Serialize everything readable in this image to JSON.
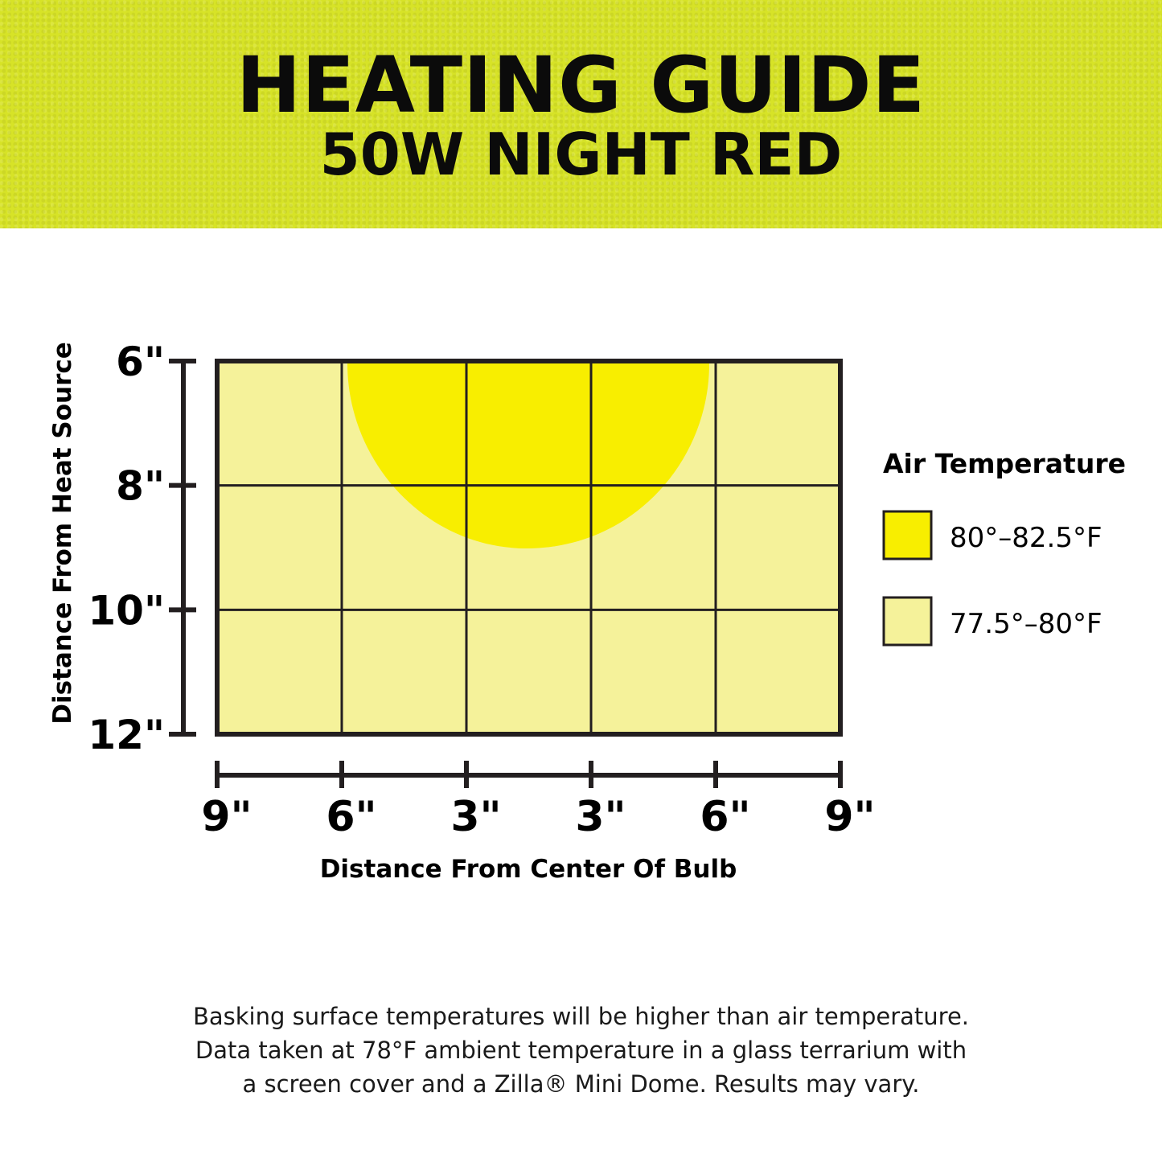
{
  "header": {
    "title": "HEATING GUIDE",
    "subtitle": "50W NIGHT RED"
  },
  "colors": {
    "banner": "#d7e327",
    "hot": "#f8ee00",
    "warm": "#f5f29a",
    "line": "#231f20"
  },
  "chart_data": {
    "type": "heatmap",
    "xlabel": "Distance From Center Of Bulb",
    "ylabel": "Distance From Heat Source",
    "x_tick_labels": [
      "9\"",
      "6\"",
      "3\"",
      "3\"",
      "6\"",
      "9\""
    ],
    "y_tick_labels": [
      "6\"",
      "8\"",
      "10\"",
      "12\""
    ],
    "grid": true,
    "zones": [
      {
        "name": "80°–82.5°F",
        "color": "#f8ee00",
        "description_depth_max_in": 9
      },
      {
        "name": "77.5°–80°F",
        "color": "#f5f29a"
      }
    ],
    "legend_title": "Air Temperature",
    "legend_placement": "right"
  },
  "footnote": [
    "Basking surface temperatures will be higher than air temperature.",
    "Data taken at 78°F ambient temperature in a glass terrarium with",
    "a screen cover and a Zilla® Mini Dome. Results may vary."
  ]
}
